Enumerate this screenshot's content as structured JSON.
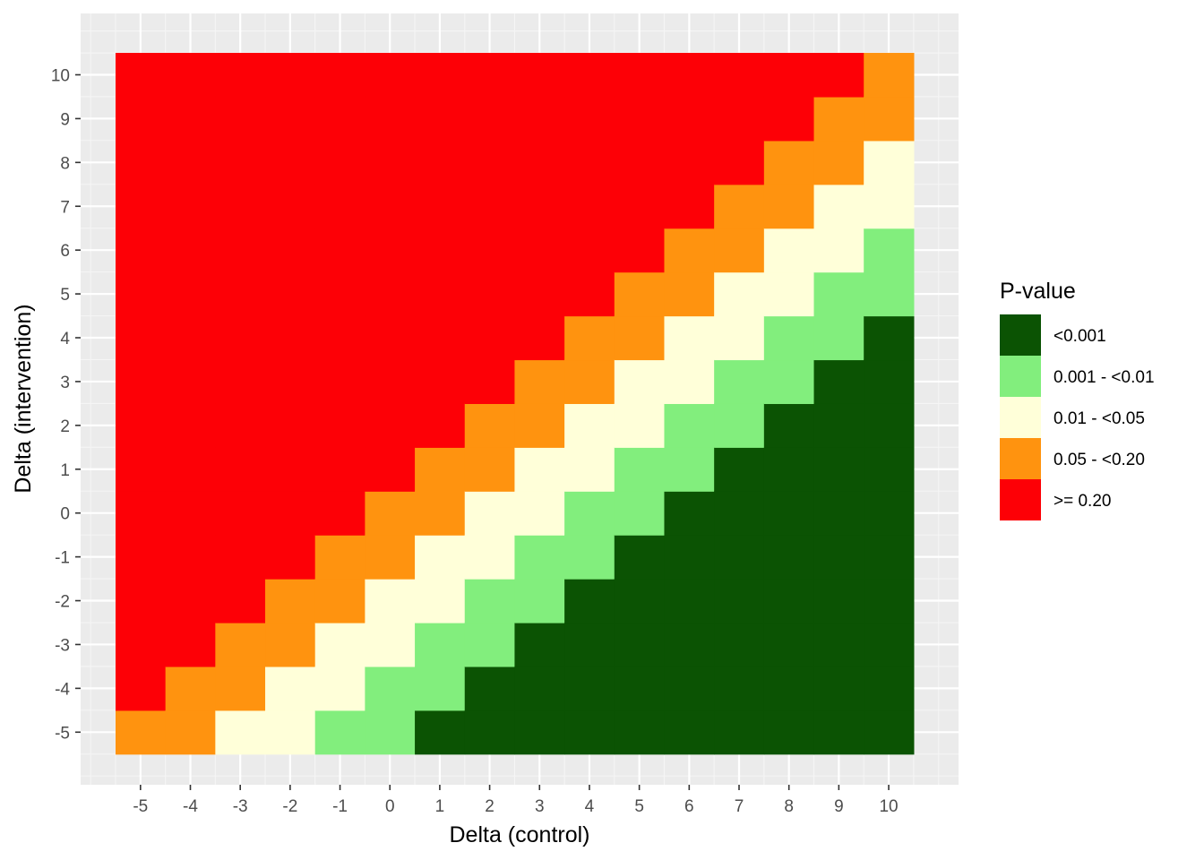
{
  "chart_data": {
    "type": "heatmap",
    "xlabel": "Delta (control)",
    "ylabel": "Delta (intervention)",
    "x": [
      -5,
      -4,
      -3,
      -2,
      -1,
      0,
      1,
      2,
      3,
      4,
      5,
      6,
      7,
      8,
      9,
      10
    ],
    "y": [
      -5,
      -4,
      -3,
      -2,
      -1,
      0,
      1,
      2,
      3,
      4,
      5,
      6,
      7,
      8,
      9,
      10
    ],
    "x_tick_labels": [
      "-5",
      "-4",
      "-3",
      "-2",
      "-1",
      "0",
      "1",
      "2",
      "3",
      "4",
      "5",
      "6",
      "7",
      "8",
      "9",
      "10"
    ],
    "y_tick_labels": [
      "-5",
      "-4",
      "-3",
      "-2",
      "-1",
      "0",
      "1",
      "2",
      "3",
      "4",
      "5",
      "6",
      "7",
      "8",
      "9",
      "10"
    ],
    "xlim": [
      -6.2,
      11.4
    ],
    "ylim": [
      -6.2,
      11.4
    ],
    "grid": true,
    "category_by_difference": [
      {
        "category": ">= 0.20",
        "y_minus_x": [
          1,
          100
        ]
      },
      {
        "category": "0.05 - <0.20",
        "y_minus_x": [
          -1,
          0
        ]
      },
      {
        "category": "0.01 - <0.05",
        "y_minus_x": [
          -3,
          -2
        ]
      },
      {
        "category": "0.001 - <0.01",
        "y_minus_x": [
          -5,
          -4
        ]
      },
      {
        "category": "<0.001",
        "y_minus_x": [
          -100,
          -6
        ]
      }
    ],
    "legend": {
      "title": "P-value",
      "position": "right",
      "entries": [
        {
          "label": "<0.001",
          "color": "#0b5303"
        },
        {
          "label": "0.001 - <0.01",
          "color": "#82ee7d"
        },
        {
          "label": "0.01 - <0.05",
          "color": "#ffffd9"
        },
        {
          "label": "0.05 - <0.20",
          "color": "#ff930f"
        },
        {
          "label": ">= 0.20",
          "color": "#fd0006"
        }
      ]
    },
    "colors": {
      "panel_background": "#ebebeb",
      "grid_major": "#ffffff",
      "grid_minor": "#f5f5f5",
      "tick_text": "#4d4d4d",
      "tick_mark": "#333333"
    }
  }
}
